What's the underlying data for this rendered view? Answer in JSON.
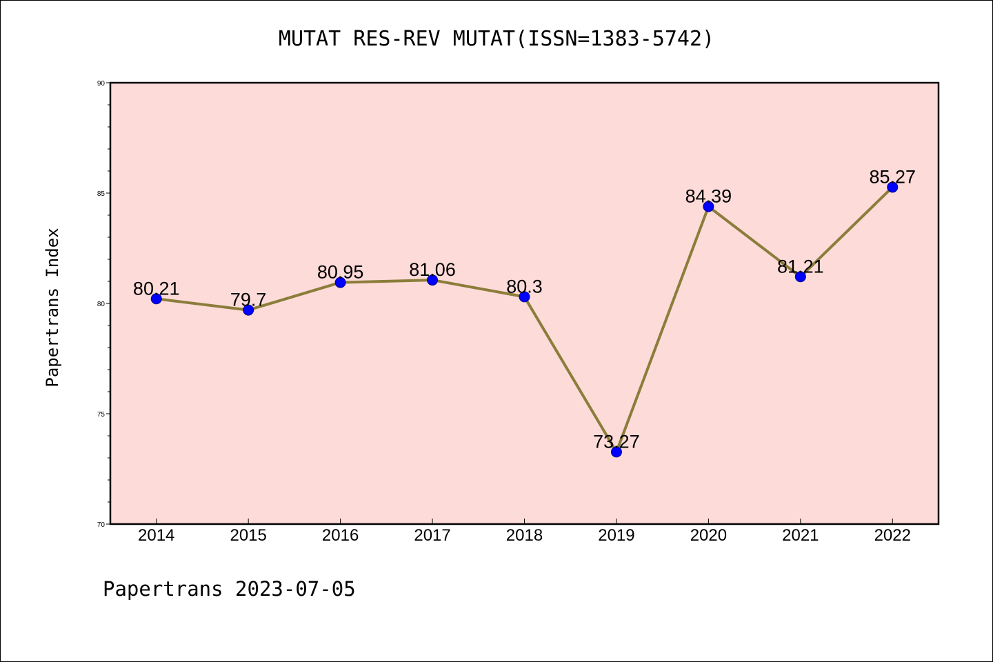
{
  "chart_data": {
    "type": "line",
    "title": "MUTAT RES-REV MUTAT(ISSN=1383-5742)",
    "ylabel": "Papertrans Index",
    "xlabel": "",
    "footer": "Papertrans 2023-07-05",
    "categories": [
      "2014",
      "2015",
      "2016",
      "2017",
      "2018",
      "2019",
      "2020",
      "2021",
      "2022"
    ],
    "series": [
      {
        "values": [
          80.21,
          79.7,
          80.95,
          81.06,
          80.3,
          73.27,
          84.39,
          81.21,
          85.27
        ],
        "labels": [
          "80.21",
          "79.7",
          "80.95",
          "81.06",
          "80.3",
          "73.27",
          "84.39",
          "81.21",
          "85.27"
        ]
      }
    ],
    "ylim": [
      70,
      90
    ],
    "yticks": [
      70,
      75,
      80,
      85,
      90
    ],
    "ytick_labels": [
      "70",
      "75",
      "80",
      "85",
      "90"
    ],
    "grid": false,
    "legend": "none",
    "colors": {
      "plot_background": "#fddbd9",
      "line": "#8b7d3a",
      "marker": "#0000ff",
      "axes": "#000000"
    }
  }
}
